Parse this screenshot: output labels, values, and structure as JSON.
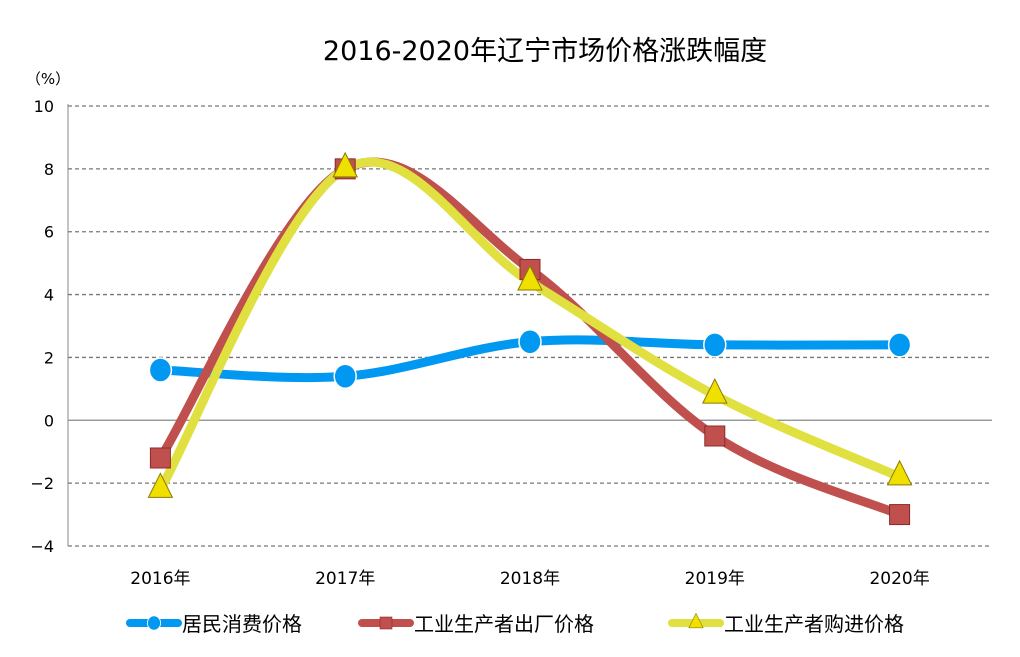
{
  "chart_data": {
    "type": "line",
    "title": "2016-2020年辽宁市场价格涨跌幅度",
    "ylabel": "（%）",
    "xlabel": "",
    "categories": [
      "2016年",
      "2017年",
      "2018年",
      "2019年",
      "2020年"
    ],
    "ylim": [
      -4,
      10
    ],
    "yticks": [
      10,
      8,
      6,
      4,
      2,
      0,
      -2,
      -4
    ],
    "ytick_labels": [
      "10",
      "8",
      "6",
      "4",
      "2",
      "0",
      "−2",
      "−4"
    ],
    "grid": true,
    "smooth": true,
    "legend_position": "bottom",
    "series": [
      {
        "name": "居民消费价格",
        "values": [
          1.6,
          1.4,
          2.5,
          2.4,
          2.4
        ],
        "color": "#0098F0",
        "marker": "circle"
      },
      {
        "name": "工业生产者出厂价格",
        "values": [
          -1.2,
          8.0,
          4.8,
          -0.5,
          -3.0
        ],
        "color": "#C0504D",
        "marker": "square"
      },
      {
        "name": "工业生产者购进价格",
        "values": [
          -2.2,
          8.0,
          4.4,
          0.8,
          -1.8
        ],
        "color": "#E0E040",
        "marker": "triangle"
      }
    ]
  }
}
